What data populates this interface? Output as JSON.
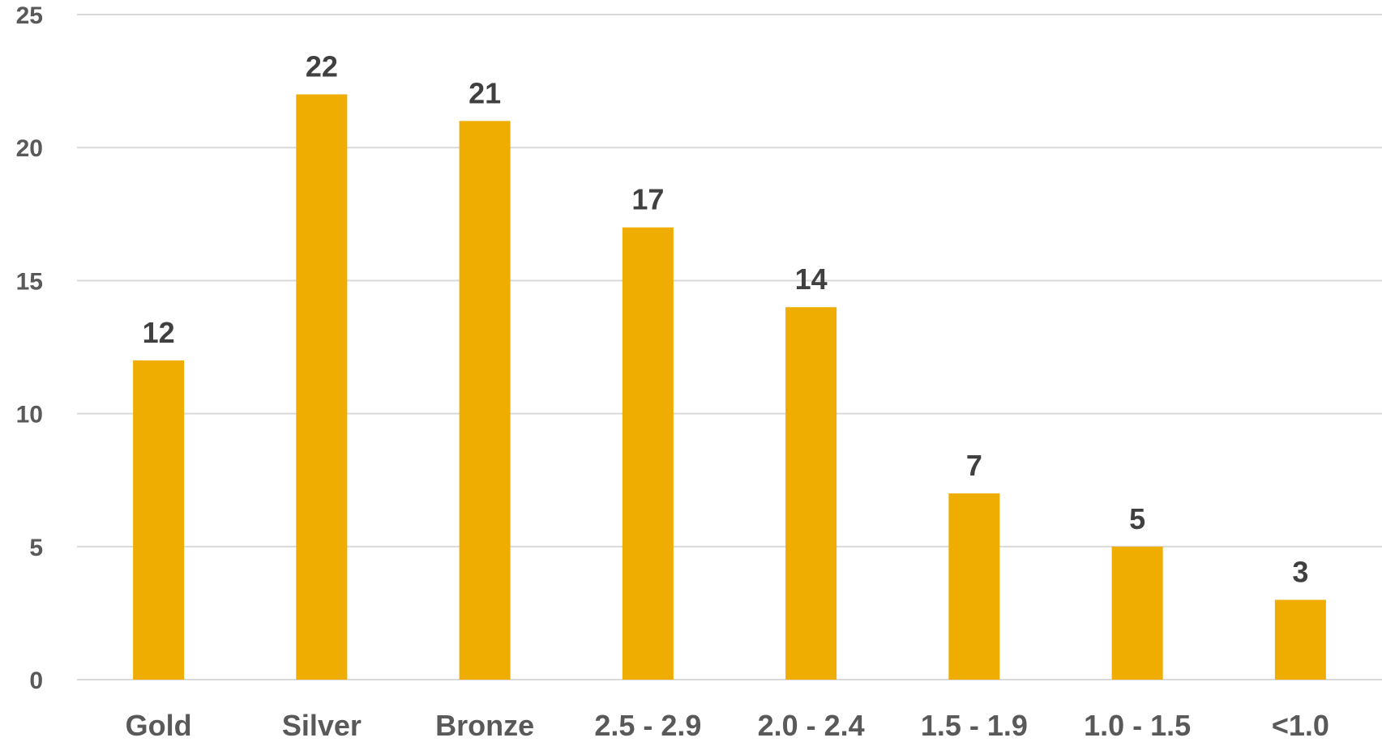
{
  "chart_data": {
    "type": "bar",
    "categories": [
      "Gold",
      "Silver",
      "Bronze",
      "2.5 - 2.9",
      "2.0 - 2.4",
      "1.5 - 1.9",
      "1.0 - 1.5",
      "<1.0"
    ],
    "values": [
      12,
      22,
      21,
      17,
      14,
      7,
      5,
      3
    ],
    "title": "",
    "xlabel": "",
    "ylabel": "",
    "ylim": [
      0,
      25
    ],
    "yticks": [
      "0",
      "5",
      "10",
      "15",
      "20",
      "25"
    ],
    "grid": true,
    "legend": "none",
    "bar_color": "#EEAD00"
  }
}
